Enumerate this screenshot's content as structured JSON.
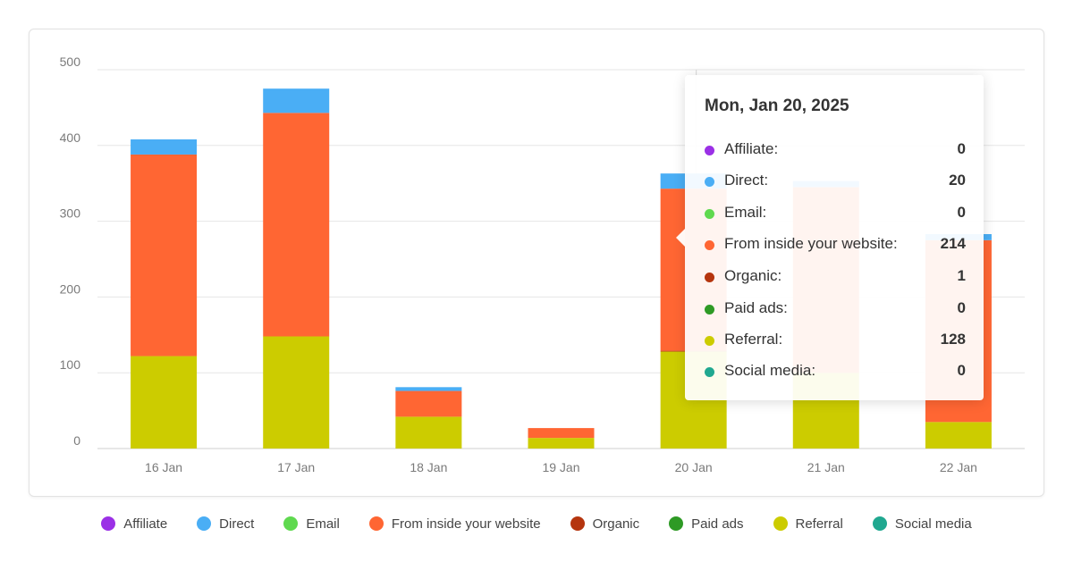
{
  "chart_data": {
    "type": "bar",
    "stacked": true,
    "categories": [
      "16 Jan",
      "17 Jan",
      "18 Jan",
      "19 Jan",
      "20 Jan",
      "21 Jan",
      "22 Jan"
    ],
    "series": [
      {
        "name": "Affiliate",
        "color": "#9b30e6",
        "values": [
          0,
          0,
          0,
          0,
          0,
          0,
          0
        ]
      },
      {
        "name": "Direct",
        "color": "#4aaef5",
        "values": [
          20,
          32,
          5,
          0,
          20,
          8,
          8
        ]
      },
      {
        "name": "Email",
        "color": "#5fd94f",
        "values": [
          0,
          0,
          0,
          0,
          0,
          0,
          0
        ]
      },
      {
        "name": "From inside your website",
        "color": "#ff6633",
        "values": [
          266,
          295,
          34,
          13,
          214,
          245,
          240
        ]
      },
      {
        "name": "Organic",
        "color": "#b5350e",
        "values": [
          0,
          0,
          0,
          0,
          1,
          0,
          0
        ]
      },
      {
        "name": "Paid ads",
        "color": "#2e9a25",
        "values": [
          0,
          0,
          0,
          0,
          0,
          0,
          0
        ]
      },
      {
        "name": "Referral",
        "color": "#cccc00",
        "values": [
          122,
          148,
          42,
          14,
          128,
          100,
          35
        ]
      },
      {
        "name": "Social media",
        "color": "#20a890",
        "values": [
          0,
          0,
          0,
          0,
          0,
          0,
          0
        ]
      }
    ],
    "ylim": [
      0,
      500
    ],
    "yticks": [
      "0",
      "100",
      "200",
      "300",
      "400",
      "500"
    ],
    "grid": true,
    "legend": "bottom"
  },
  "tooltip": {
    "title": "Mon, Jan 20, 2025",
    "rows": [
      {
        "label": "Affiliate:",
        "value": "0",
        "color": "#9b30e6"
      },
      {
        "label": "Direct:",
        "value": "20",
        "color": "#4aaef5"
      },
      {
        "label": "Email:",
        "value": "0",
        "color": "#5fd94f"
      },
      {
        "label": "From inside your website:",
        "value": "214",
        "color": "#ff6633"
      },
      {
        "label": "Organic:",
        "value": "1",
        "color": "#b5350e"
      },
      {
        "label": "Paid ads:",
        "value": "0",
        "color": "#2e9a25"
      },
      {
        "label": "Referral:",
        "value": "128",
        "color": "#cccc00"
      },
      {
        "label": "Social media:",
        "value": "0",
        "color": "#20a890"
      }
    ]
  },
  "legend": {
    "items": [
      {
        "label": "Affiliate",
        "color": "#9b30e6"
      },
      {
        "label": "Direct",
        "color": "#4aaef5"
      },
      {
        "label": "Email",
        "color": "#5fd94f"
      },
      {
        "label": "From inside your website",
        "color": "#ff6633"
      },
      {
        "label": "Organic",
        "color": "#b5350e"
      },
      {
        "label": "Paid ads",
        "color": "#2e9a25"
      },
      {
        "label": "Referral",
        "color": "#cccc00"
      },
      {
        "label": "Social media",
        "color": "#20a890"
      }
    ]
  }
}
